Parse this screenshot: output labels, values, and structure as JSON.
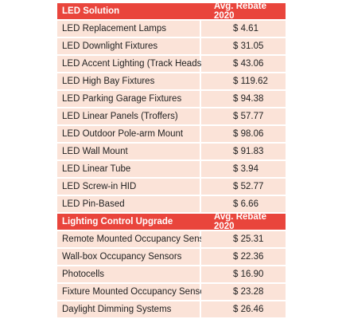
{
  "table": {
    "sections": [
      {
        "header": {
          "label": "LED Solution",
          "value_header": "Avg. Rebate 2020"
        },
        "rows": [
          {
            "label": "LED Replacement Lamps",
            "value": "$ 4.61"
          },
          {
            "label": "LED Downlight Fixtures",
            "value": "$ 31.05"
          },
          {
            "label": "LED Accent Lighting (Track Heads)",
            "value": "$ 43.06"
          },
          {
            "label": "LED High Bay Fixtures",
            "value": "$ 119.62"
          },
          {
            "label": "LED Parking Garage Fixtures",
            "value": "$ 94.38"
          },
          {
            "label": "LED Linear Panels (Troffers)",
            "value": "$ 57.77"
          },
          {
            "label": "LED Outdoor Pole-arm Mount",
            "value": "$ 98.06"
          },
          {
            "label": "LED Wall Mount",
            "value": "$ 91.83"
          },
          {
            "label": "LED Linear Tube",
            "value": "$ 3.94"
          },
          {
            "label": "LED Screw-in HID",
            "value": "$ 52.77"
          },
          {
            "label": "LED Pin-Based",
            "value": "$ 6.66"
          }
        ]
      },
      {
        "header": {
          "label": "Lighting Control Upgrade",
          "value_header": "Avg. Rebate 2020"
        },
        "rows": [
          {
            "label": "Remote Mounted Occupancy Sensors",
            "value": "$ 25.31"
          },
          {
            "label": "Wall-box Occupancy Sensors",
            "value": "$ 22.36"
          },
          {
            "label": "Photocells",
            "value": "$ 16.90"
          },
          {
            "label": "Fixture Mounted Occupancy Sensors",
            "value": "$ 23.28"
          },
          {
            "label": "Daylight Dimming Systems",
            "value": "$ 26.46"
          }
        ]
      }
    ],
    "colors": {
      "header_bg": "#e9453c",
      "row_bg": "#fbe3d8",
      "header_text": "#ffffff",
      "body_text": "#222222"
    }
  }
}
